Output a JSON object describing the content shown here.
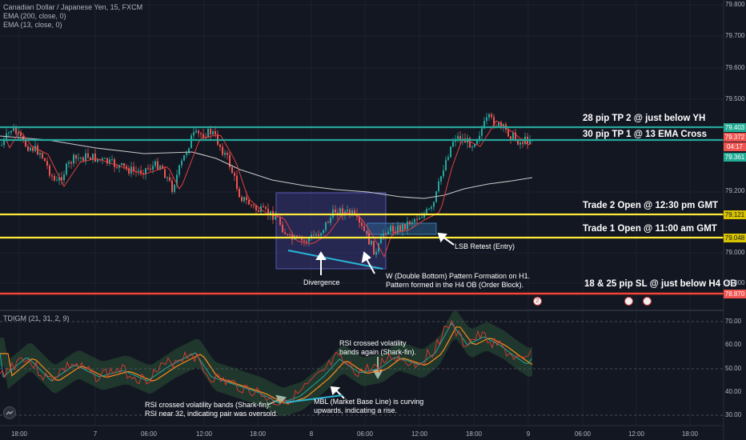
{
  "header": {
    "symbol_title": "Canadian Dollar / Japanese Yen, 15, FXCM",
    "ema200_label": "EMA (200, close, 0)",
    "ema13_label": "EMA (13, close, 0)"
  },
  "indicator": {
    "label": "TDIGM (21, 31, 2, 9)"
  },
  "price_axis": {
    "ticks": [
      "79.800",
      "79.700",
      "79.600",
      "79.500",
      "79.200",
      "79.000",
      "78.900"
    ],
    "tags": [
      {
        "value": "79.403",
        "color": "#22ab94"
      },
      {
        "value": "79.372",
        "color": "#ef5350"
      },
      {
        "value": "04:17",
        "color": "#ef5350"
      },
      {
        "value": "79.361",
        "color": "#22ab94"
      },
      {
        "value": "79.121",
        "color": "#d9c400"
      },
      {
        "value": "79.048",
        "color": "#d9c400"
      },
      {
        "value": "78.870",
        "color": "#ef5350"
      }
    ]
  },
  "rsi_axis": {
    "ticks": [
      "70.00",
      "60.00",
      "50.00",
      "40.00",
      "30.00"
    ]
  },
  "time_axis": {
    "labels": [
      "18:00",
      "7",
      "06:00",
      "12:00",
      "18:00",
      "8",
      "06:00",
      "12:00",
      "18:00",
      "9",
      "06:00",
      "12:00",
      "18:00"
    ]
  },
  "levels": {
    "tp2": "28 pip TP 2 @ just below YH",
    "tp1": "30 pip TP 1 @ 13 EMA Cross",
    "trade2": "Trade 2 Open @ 12:30 pm GMT",
    "trade1": "Trade 1 Open @ 11:00 am GMT",
    "sl": "18 & 25 pip SL @ just below H4 OB"
  },
  "annotations": {
    "divergence": "Divergence",
    "w_pattern_1": "W (Double Bottom) Pattern Formation on H1.",
    "w_pattern_2": "Pattern formed in the H4 OB (Order Block).",
    "lsb": "LSB Retest (Entry)",
    "rsi_cross2_1": "RSI crossed volatility",
    "rsi_cross2_2": "bands again (Shark-fin).",
    "rsi_cross1_1": "RSI crossed volatility bands (Shark-fin).",
    "rsi_cross1_2": "RSI near 32, indicating pair was oversold.",
    "mbl_1": "MBL (Market Base Line) is curving",
    "mbl_2": "upwards, indicating a rise."
  },
  "events": [
    "2",
    "",
    ""
  ],
  "colors": {
    "background": "#131722",
    "up": "#26a69a",
    "down": "#ef5350",
    "tp_line": "#26a69a",
    "entry_line": "#ffeb3b",
    "sl_line": "#f44336",
    "ema200": "#b2b5be",
    "ema13": "#f23645"
  }
}
